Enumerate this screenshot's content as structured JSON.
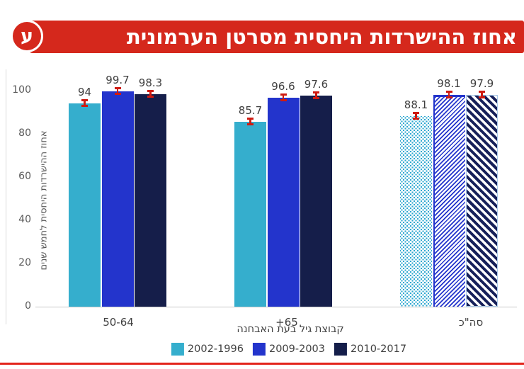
{
  "banner": {
    "title": "אחוז ההישרדות היחסית מסרטן הערמונית",
    "badge_letter": "ע",
    "background": "#d5281c",
    "text_color": "#ffffff"
  },
  "chart_data": {
    "type": "bar",
    "categories": [
      "50-64",
      "+65",
      "סה\"כ"
    ],
    "series": [
      {
        "name": "2002-1996",
        "color": "#35aecd",
        "values": [
          94,
          85.7,
          88.1
        ]
      },
      {
        "name": "2009-2003",
        "color": "#2334cc",
        "values": [
          99.7,
          96.6,
          98.1
        ]
      },
      {
        "name": "2010-2017",
        "color": "#151e4a",
        "values": [
          98.3,
          97.6,
          97.9
        ]
      }
    ],
    "xlabel": "קבוצת גיל בעת האבחנה",
    "ylabel": "אחוז ההישרדות היחסית לחמש שנים",
    "ylim": [
      0,
      100
    ],
    "yticks": [
      0,
      20,
      40,
      60,
      80,
      100
    ],
    "grid": false,
    "legend_position": "bottom",
    "last_group_patterns": [
      "dots",
      "diagonal-up",
      "diagonal-down"
    ],
    "error_bars": true,
    "error_bar_color": "#cf1b11",
    "data_label_color": "#3f3f3f"
  },
  "footer": {
    "rule_color": "#e3251c"
  }
}
